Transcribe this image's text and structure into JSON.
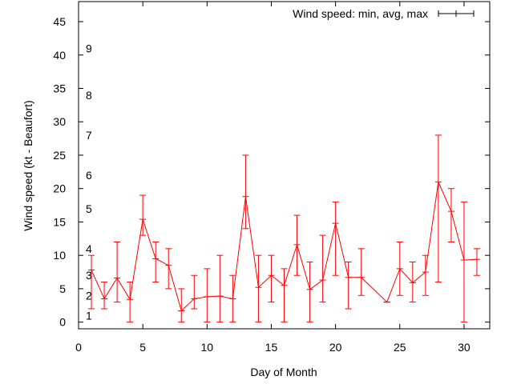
{
  "chart_data": {
    "type": "line",
    "title": "",
    "xlabel": "Day of Month",
    "ylabel": "Wind speed (kt - Beaufort)",
    "xlim": [
      0,
      32
    ],
    "ylim": [
      -1,
      48
    ],
    "xticks": [
      0,
      5,
      10,
      15,
      20,
      25,
      30
    ],
    "yticks": [
      0,
      5,
      10,
      15,
      20,
      25,
      30,
      35,
      40,
      45
    ],
    "grid": false,
    "legend_position": "top-right",
    "series": [
      {
        "name": "Wind speed: min, avg, max",
        "color": "#ff0000",
        "legend_color": "#000000",
        "x": [
          1,
          2,
          3,
          4,
          5,
          6,
          7,
          8,
          9,
          10,
          11,
          12,
          13,
          14,
          15,
          16,
          17,
          18,
          19,
          20,
          21,
          22,
          24,
          25,
          26,
          27,
          28,
          29,
          30,
          31
        ],
        "avg": [
          7.8,
          3.5,
          6.6,
          3.4,
          15.4,
          9.5,
          8.5,
          1.7,
          3.5,
          3.8,
          3.9,
          3.5,
          18.8,
          5.2,
          7,
          5.5,
          11.6,
          4.9,
          6.3,
          14.8,
          6.7,
          6.7,
          3,
          8,
          5.9,
          7.5,
          21,
          16.6,
          9.3,
          9.4
        ],
        "min": [
          2,
          2,
          3,
          0,
          13,
          6,
          5,
          0,
          2,
          0,
          0,
          0,
          14,
          0,
          3,
          0,
          7,
          0,
          3,
          7,
          2,
          4,
          3,
          4,
          3,
          4,
          6,
          12,
          0,
          7
        ],
        "max": [
          10,
          6,
          12,
          6,
          19,
          12,
          11,
          5,
          7,
          8,
          10,
          7,
          25,
          10,
          10,
          8,
          16,
          9,
          13,
          18,
          9,
          11,
          3,
          12,
          9,
          10,
          28,
          20,
          18,
          11
        ]
      }
    ],
    "annotations": [
      {
        "text": "1",
        "y": 1
      },
      {
        "text": "2",
        "y": 4
      },
      {
        "text": "3",
        "y": 7
      },
      {
        "text": "4",
        "y": 11
      },
      {
        "text": "5",
        "y": 17
      },
      {
        "text": "6",
        "y": 22
      },
      {
        "text": "7",
        "y": 28
      },
      {
        "text": "8",
        "y": 34
      },
      {
        "text": "9",
        "y": 41
      }
    ]
  }
}
